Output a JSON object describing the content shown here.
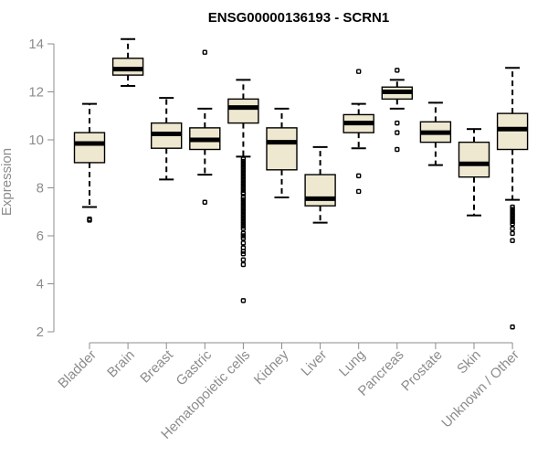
{
  "chart_data": {
    "type": "boxplot",
    "title": "ENSG00000136193 - SCRN1",
    "xlabel": "",
    "ylabel": "Expression",
    "ylim": [
      2,
      14
    ],
    "yticks": [
      2,
      4,
      6,
      8,
      10,
      12,
      14
    ],
    "grid": false,
    "legend": "none",
    "box_color": "#efe8d0",
    "categories": [
      "Bladder",
      "Brain",
      "Breast",
      "Gastric",
      "Hematopoietic cells",
      "Kidney",
      "Liver",
      "Lung",
      "Pancreas",
      "Prostate",
      "Skin",
      "Unknown / Other"
    ],
    "boxes": [
      {
        "category": "Bladder",
        "whisker_low": 7.2,
        "q1": 9.05,
        "median": 9.85,
        "q3": 10.3,
        "whisker_high": 11.5,
        "outliers": [
          6.7,
          6.65
        ]
      },
      {
        "category": "Brain",
        "whisker_low": 12.25,
        "q1": 12.7,
        "median": 12.95,
        "q3": 13.4,
        "whisker_high": 14.2,
        "outliers": []
      },
      {
        "category": "Breast",
        "whisker_low": 8.35,
        "q1": 9.65,
        "median": 10.25,
        "q3": 10.7,
        "whisker_high": 11.75,
        "outliers": []
      },
      {
        "category": "Gastric",
        "whisker_low": 8.55,
        "q1": 9.6,
        "median": 10.0,
        "q3": 10.5,
        "whisker_high": 11.3,
        "outliers": [
          13.65,
          7.4
        ]
      },
      {
        "category": "Hematopoietic cells",
        "whisker_low": 9.3,
        "q1": 10.7,
        "median": 11.35,
        "q3": 11.7,
        "whisker_high": 12.5,
        "outliers": [
          9.2,
          9.1,
          9.0,
          8.9,
          8.8,
          8.7,
          8.6,
          8.5,
          8.4,
          8.3,
          8.2,
          8.1,
          8.0,
          7.9,
          7.8,
          7.75,
          7.6,
          7.5,
          7.4,
          7.3,
          7.2,
          7.1,
          7.0,
          6.9,
          6.8,
          6.7,
          6.6,
          6.5,
          6.4,
          6.3,
          6.1,
          6.0,
          5.9,
          5.7,
          5.5,
          5.35,
          5.25,
          5.0,
          4.8,
          3.3
        ]
      },
      {
        "category": "Kidney",
        "whisker_low": 7.6,
        "q1": 8.75,
        "median": 9.9,
        "q3": 10.5,
        "whisker_high": 11.3,
        "outliers": []
      },
      {
        "category": "Liver",
        "whisker_low": 6.55,
        "q1": 7.25,
        "median": 7.55,
        "q3": 8.55,
        "whisker_high": 9.7,
        "outliers": []
      },
      {
        "category": "Lung",
        "whisker_low": 9.65,
        "q1": 10.3,
        "median": 10.7,
        "q3": 11.05,
        "whisker_high": 11.5,
        "outliers": [
          12.85,
          8.5,
          7.85
        ]
      },
      {
        "category": "Pancreas",
        "whisker_low": 11.3,
        "q1": 11.7,
        "median": 12.0,
        "q3": 12.2,
        "whisker_high": 12.5,
        "outliers": [
          12.9,
          10.7,
          10.3,
          9.6
        ]
      },
      {
        "category": "Prostate",
        "whisker_low": 8.95,
        "q1": 9.9,
        "median": 10.3,
        "q3": 10.75,
        "whisker_high": 11.55,
        "outliers": []
      },
      {
        "category": "Skin",
        "whisker_low": 6.85,
        "q1": 8.45,
        "median": 9.0,
        "q3": 9.9,
        "whisker_high": 10.45,
        "outliers": []
      },
      {
        "category": "Unknown / Other",
        "whisker_low": 7.5,
        "q1": 9.6,
        "median": 10.45,
        "q3": 11.1,
        "whisker_high": 13.0,
        "outliers": [
          7.2,
          7.1,
          7.0,
          6.9,
          6.8,
          6.7,
          6.6,
          6.5,
          6.3,
          6.1,
          5.8,
          2.2
        ]
      }
    ]
  }
}
